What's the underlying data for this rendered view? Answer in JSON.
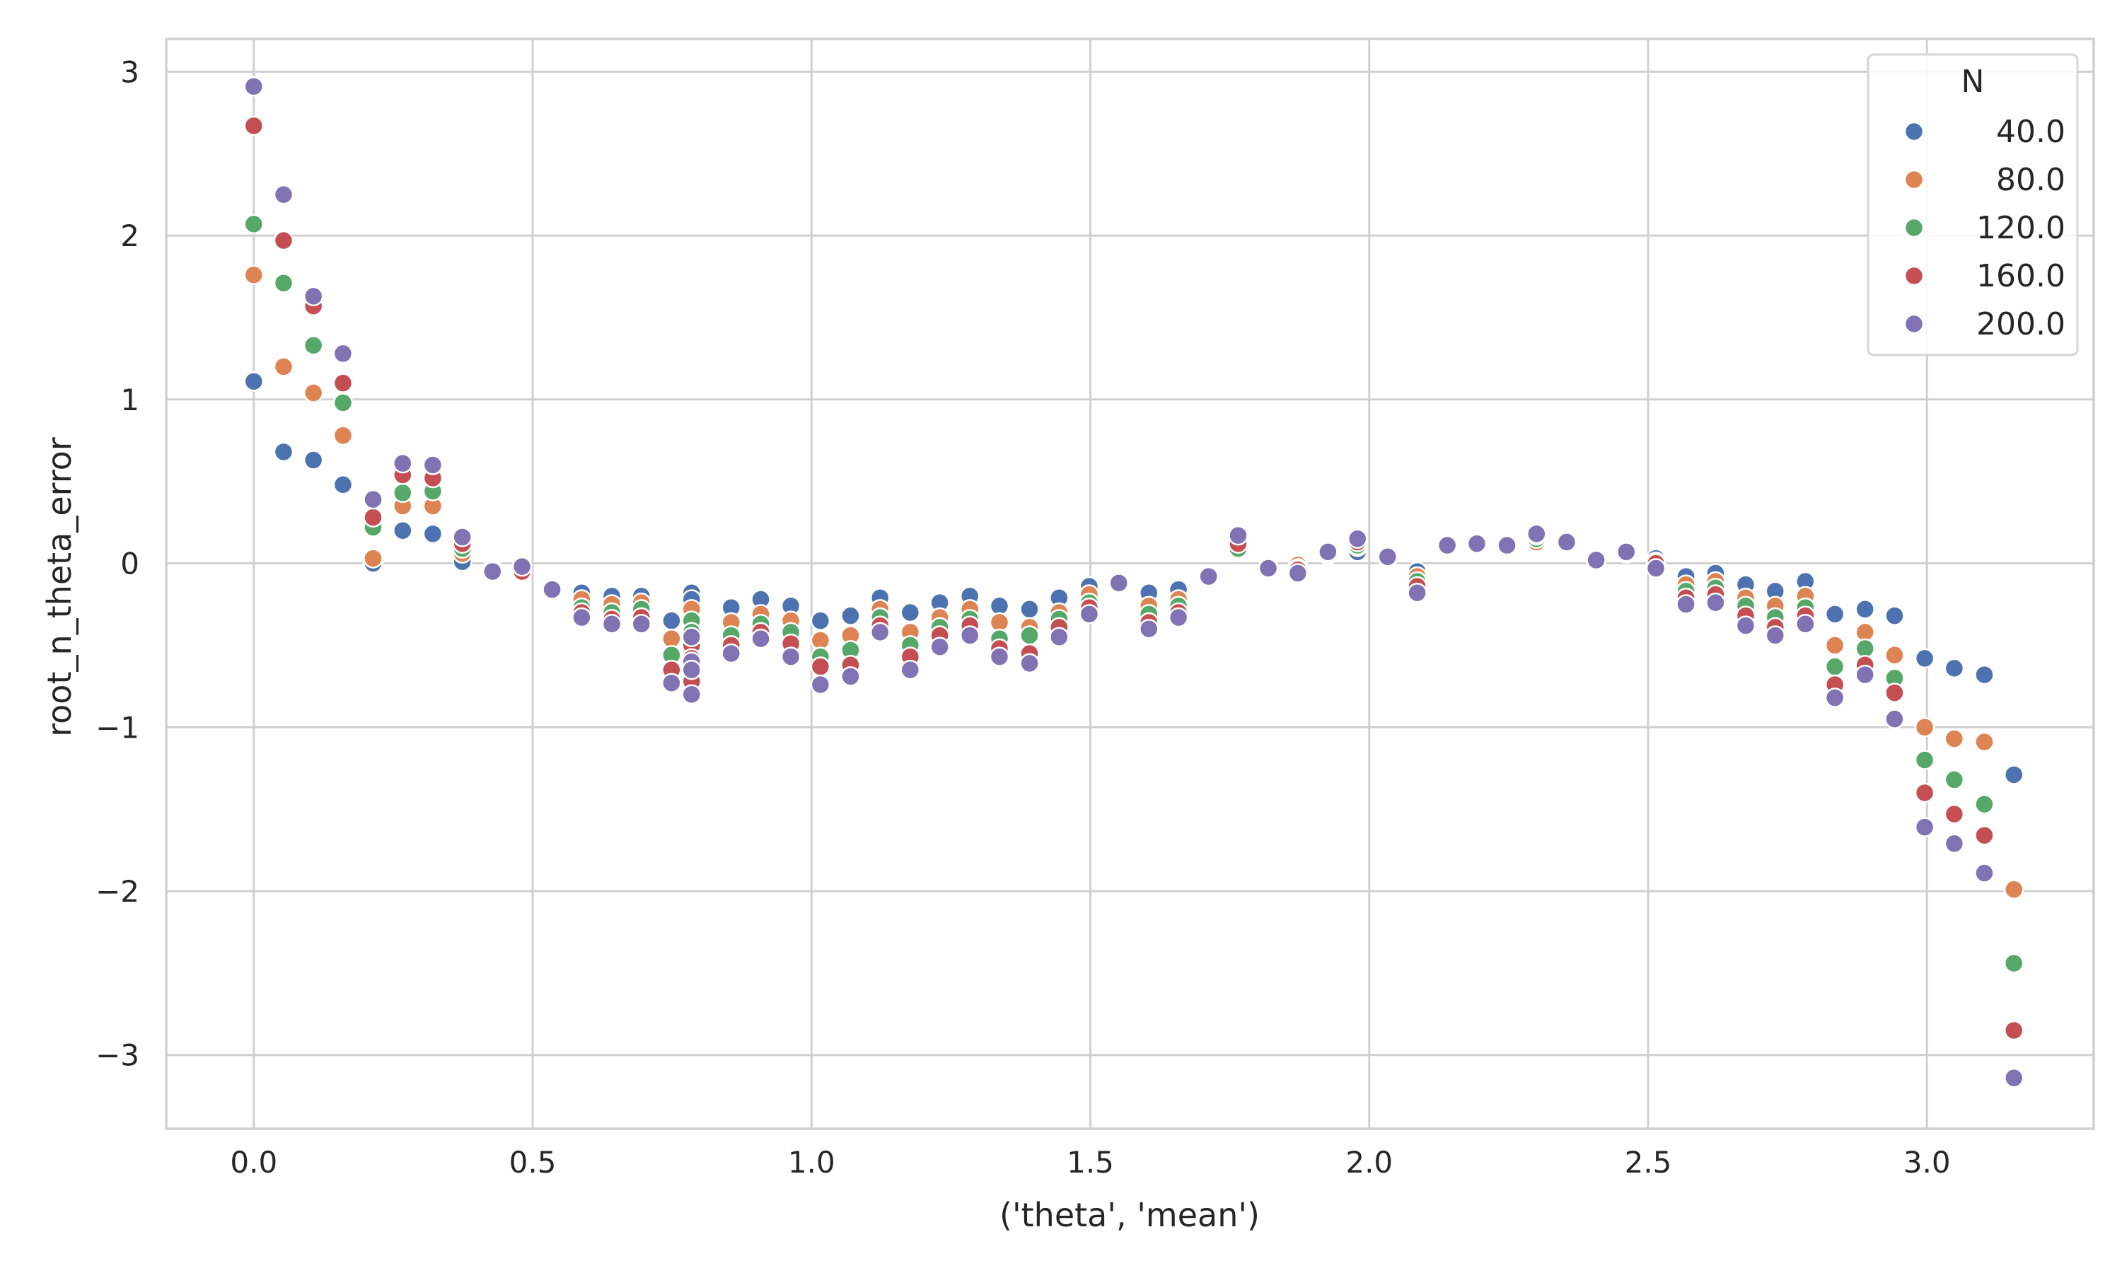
{
  "chart_data": {
    "type": "scatter",
    "title": "",
    "xlabel": "('theta', 'mean')",
    "ylabel": "root_n_theta_error",
    "xlim": [
      -0.157,
      3.299
    ],
    "ylim": [
      -3.45,
      3.2
    ],
    "xticks": [
      0.0,
      0.5,
      1.0,
      1.5,
      2.0,
      2.5,
      3.0
    ],
    "xtick_labels": [
      "0.0",
      "0.5",
      "1.0",
      "1.5",
      "2.0",
      "2.5",
      "3.0"
    ],
    "yticks": [
      3,
      2,
      1,
      0,
      -1,
      -2,
      -3
    ],
    "ytick_labels": [
      "3",
      "2",
      "1",
      "0",
      "−1",
      "−2",
      "−3"
    ],
    "grid": true,
    "legend": {
      "title": "N",
      "placement": "top-right"
    },
    "x": [
      0.0,
      0.0535,
      0.107,
      0.16,
      0.214,
      0.267,
      0.321,
      0.374,
      0.428,
      0.481,
      0.535,
      0.588,
      0.642,
      0.695,
      0.749,
      0.785,
      0.856,
      0.909,
      0.963,
      1.016,
      1.07,
      1.123,
      1.177,
      1.23,
      1.284,
      1.337,
      1.391,
      1.444,
      1.498,
      1.551,
      1.605,
      1.658,
      1.712,
      1.765,
      1.819,
      1.872,
      1.926,
      1.979,
      2.033,
      2.086,
      2.14,
      2.193,
      2.247,
      2.3,
      2.354,
      2.407,
      2.461,
      2.514,
      2.568,
      2.621,
      2.675,
      2.728,
      2.782,
      2.835,
      2.889,
      2.942,
      2.996,
      3.049,
      3.103,
      3.156
    ],
    "series": [
      {
        "name": "40.0",
        "color": "#4c72b0",
        "values": [
          1.11,
          0.68,
          0.63,
          0.48,
          0.0,
          0.2,
          0.18,
          0.01,
          -0.03,
          -0.01,
          -0.13,
          -0.18,
          -0.2,
          -0.2,
          -0.35,
          -0.18,
          -0.27,
          -0.22,
          -0.26,
          -0.35,
          -0.32,
          -0.21,
          -0.3,
          -0.24,
          -0.2,
          -0.26,
          -0.28,
          -0.21,
          -0.14,
          -0.08,
          -0.18,
          -0.16,
          -0.07,
          0.07,
          -0.02,
          0.0,
          0.05,
          0.07,
          0.03,
          -0.05,
          0.08,
          0.1,
          0.08,
          0.14,
          0.11,
          0.02,
          0.06,
          0.03,
          -0.08,
          -0.06,
          -0.13,
          -0.17,
          -0.11,
          -0.31,
          -0.28,
          -0.32,
          -0.58,
          -0.64,
          -0.68,
          -1.29
        ]
      },
      {
        "name": "80.0",
        "color": "#dd8452",
        "values": [
          1.76,
          1.2,
          1.04,
          0.78,
          0.03,
          0.35,
          0.35,
          0.06,
          -0.04,
          -0.03,
          -0.14,
          -0.22,
          -0.25,
          -0.24,
          -0.46,
          -0.28,
          -0.36,
          -0.31,
          -0.35,
          -0.47,
          -0.44,
          -0.28,
          -0.42,
          -0.33,
          -0.28,
          -0.36,
          -0.39,
          -0.3,
          -0.19,
          -0.09,
          -0.26,
          -0.22,
          -0.08,
          0.08,
          -0.02,
          -0.01,
          0.05,
          0.1,
          0.03,
          -0.08,
          0.08,
          0.1,
          0.09,
          0.13,
          0.11,
          0.01,
          0.06,
          0.01,
          -0.13,
          -0.11,
          -0.21,
          -0.26,
          -0.2,
          -0.5,
          -0.42,
          -0.56,
          -1.0,
          -1.07,
          -1.09,
          -1.99
        ]
      },
      {
        "name": "120.0",
        "color": "#55a868",
        "values": [
          2.07,
          1.71,
          1.33,
          0.98,
          0.22,
          0.43,
          0.44,
          0.09,
          -0.04,
          -0.04,
          -0.15,
          -0.27,
          -0.3,
          -0.28,
          -0.56,
          -0.35,
          -0.44,
          -0.37,
          -0.42,
          -0.57,
          -0.53,
          -0.33,
          -0.5,
          -0.39,
          -0.34,
          -0.46,
          -0.44,
          -0.34,
          -0.24,
          -0.1,
          -0.31,
          -0.26,
          -0.08,
          0.09,
          -0.03,
          -0.03,
          0.06,
          0.11,
          0.03,
          -0.11,
          0.09,
          0.11,
          0.1,
          0.15,
          0.12,
          0.01,
          0.07,
          -0.01,
          -0.17,
          -0.15,
          -0.26,
          -0.33,
          -0.27,
          -0.63,
          -0.52,
          -0.7,
          -1.2,
          -1.32,
          -1.47,
          -2.44
        ]
      },
      {
        "name": "160.0",
        "color": "#c44e52",
        "values": [
          2.67,
          1.97,
          1.57,
          1.1,
          0.28,
          0.54,
          0.52,
          0.12,
          -0.05,
          -0.05,
          -0.15,
          -0.3,
          -0.34,
          -0.33,
          -0.65,
          -0.55,
          -0.5,
          -0.42,
          -0.49,
          -0.63,
          -0.62,
          -0.38,
          -0.57,
          -0.44,
          -0.38,
          -0.52,
          -0.55,
          -0.39,
          -0.27,
          -0.11,
          -0.36,
          -0.3,
          -0.09,
          0.12,
          -0.03,
          -0.04,
          0.06,
          0.13,
          0.03,
          -0.14,
          0.1,
          0.11,
          0.1,
          0.17,
          0.12,
          0.02,
          0.07,
          0.0,
          -0.21,
          -0.19,
          -0.32,
          -0.39,
          -0.32,
          -0.74,
          -0.62,
          -0.79,
          -1.4,
          -1.53,
          -1.66,
          -2.85
        ]
      },
      {
        "name": "200.0",
        "color": "#8172b3",
        "values": [
          2.91,
          2.25,
          1.63,
          1.28,
          0.39,
          0.61,
          0.6,
          0.16,
          -0.05,
          -0.02,
          -0.16,
          -0.33,
          -0.37,
          -0.37,
          -0.73,
          -0.8,
          -0.55,
          -0.46,
          -0.57,
          -0.74,
          -0.69,
          -0.42,
          -0.65,
          -0.51,
          -0.44,
          -0.57,
          -0.61,
          -0.45,
          -0.31,
          -0.12,
          -0.4,
          -0.33,
          -0.08,
          0.17,
          -0.03,
          -0.06,
          0.07,
          0.15,
          0.04,
          -0.18,
          0.11,
          0.12,
          0.11,
          0.18,
          0.13,
          0.02,
          0.07,
          -0.03,
          -0.25,
          -0.24,
          -0.38,
          -0.44,
          -0.37,
          -0.82,
          -0.68,
          -0.95,
          -1.61,
          -1.71,
          -1.89,
          -3.14
        ]
      }
    ],
    "extra_points": {
      "x": 0.785,
      "series": {
        "40.0": [
          -0.22,
          -0.3,
          -0.38,
          -0.46
        ],
        "80.0": [
          -0.36,
          -0.42,
          -0.5
        ],
        "120.0": [
          -0.42,
          -0.5,
          -0.58
        ],
        "160.0": [
          -0.5,
          -0.58,
          -0.66,
          -0.72
        ],
        "200.0": [
          -0.45,
          -0.6,
          -0.65
        ]
      }
    }
  }
}
